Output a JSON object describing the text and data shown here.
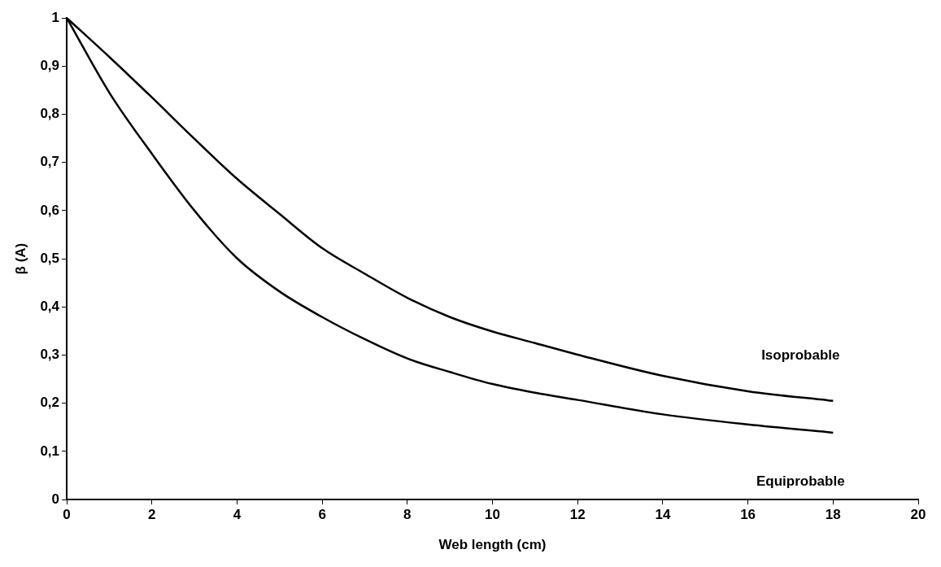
{
  "chart_data": {
    "type": "line",
    "xlabel": "Web length (cm)",
    "ylabel": "β (A)",
    "xlim": [
      0,
      20
    ],
    "xticks": [
      0,
      2,
      4,
      6,
      8,
      10,
      12,
      14,
      16,
      18,
      20
    ],
    "ylim": [
      0,
      1
    ],
    "yticks": [
      0,
      {
        "value": 0.1,
        "label": "0,1"
      },
      {
        "value": 0.2,
        "label": "0,2"
      },
      {
        "value": 0.3,
        "label": "0,3"
      },
      {
        "value": 0.4,
        "label": "0,4"
      },
      {
        "value": 0.5,
        "label": "0,5"
      },
      {
        "value": 0.6,
        "label": "0,6"
      },
      {
        "value": 0.7,
        "label": "0,7"
      },
      {
        "value": 0.8,
        "label": "0,8"
      },
      {
        "value": 0.9,
        "label": "0,9"
      },
      1
    ],
    "grid": false,
    "legend": false,
    "marker": "none",
    "line_style": "solid",
    "series": [
      {
        "color": "#000000",
        "x": [
          0,
          1,
          2,
          3,
          4,
          5,
          6,
          7,
          8,
          9,
          10,
          11,
          12,
          14,
          16,
          18
        ],
        "values": [
          1,
          0.919,
          0.835,
          0.749,
          0.666,
          0.593,
          0.522,
          0.469,
          0.419,
          0.379,
          0.349,
          0.325,
          0.301,
          0.257,
          0.225,
          0.205
        ]
      },
      {
        "color": "#000000",
        "x": [
          0,
          1,
          2,
          3,
          4,
          5,
          6,
          7,
          8,
          9,
          10,
          11,
          12,
          14,
          16,
          18
        ],
        "values": [
          1,
          0.845,
          0.718,
          0.6,
          0.501,
          0.432,
          0.379,
          0.333,
          0.293,
          0.265,
          0.24,
          0.222,
          0.207,
          0.177,
          0.156,
          0.139
        ]
      }
    ],
    "annotations": [
      "Isoprobable",
      "Equiprobable"
    ]
  }
}
